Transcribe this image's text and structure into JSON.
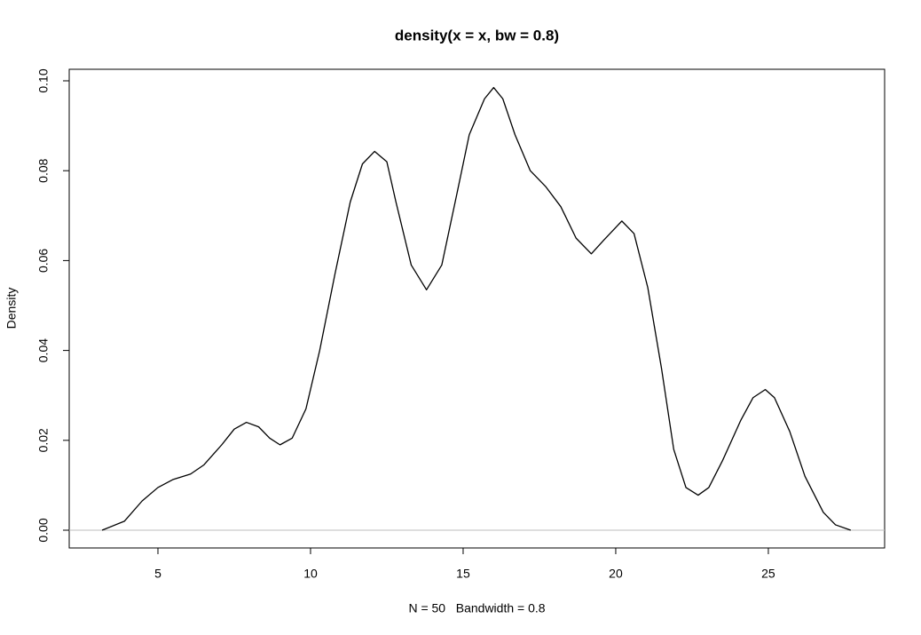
{
  "chart_data": {
    "type": "line",
    "title": "density(x = x, bw = 0.8)",
    "x_label": "N = 50   Bandwidth = 0.8",
    "y_label": "Density",
    "x": [
      3.17,
      3.9,
      4.48,
      5.0,
      5.5,
      6.07,
      6.5,
      7.09,
      7.5,
      7.9,
      8.3,
      8.66,
      9.0,
      9.4,
      9.85,
      10.3,
      10.8,
      11.3,
      11.7,
      12.1,
      12.5,
      12.8,
      13.3,
      13.8,
      14.3,
      14.8,
      15.2,
      15.7,
      16.0,
      16.3,
      16.7,
      17.2,
      17.7,
      18.2,
      18.7,
      19.2,
      19.6,
      20.2,
      20.6,
      21.05,
      21.5,
      21.9,
      22.3,
      22.7,
      23.05,
      23.5,
      24.1,
      24.5,
      24.9,
      25.2,
      25.7,
      26.2,
      26.8,
      27.2,
      27.7
    ],
    "values": [
      0.0,
      0.002,
      0.0065,
      0.0095,
      0.0113,
      0.0125,
      0.0145,
      0.019,
      0.0225,
      0.024,
      0.023,
      0.0205,
      0.019,
      0.0205,
      0.027,
      0.04,
      0.057,
      0.073,
      0.0815,
      0.0843,
      0.082,
      0.073,
      0.059,
      0.0535,
      0.059,
      0.075,
      0.088,
      0.096,
      0.0985,
      0.096,
      0.088,
      0.08,
      0.0765,
      0.072,
      0.065,
      0.0615,
      0.0645,
      0.0688,
      0.066,
      0.054,
      0.036,
      0.018,
      0.0095,
      0.0078,
      0.0095,
      0.0155,
      0.0245,
      0.0295,
      0.0313,
      0.0295,
      0.022,
      0.012,
      0.004,
      0.0012,
      0.0
    ],
    "color": "#000000",
    "xlim": [
      2.093,
      28.81
    ],
    "ylim": [
      -0.00395,
      0.10257
    ],
    "xticks": [
      5,
      10,
      15,
      20,
      25
    ],
    "yticks": [
      {
        "value": 0,
        "label": "0.00"
      },
      {
        "value": 0.02,
        "label": "0.02"
      },
      {
        "value": 0.04,
        "label": "0.04"
      },
      {
        "value": 0.06,
        "label": "0.06"
      },
      {
        "value": 0.08,
        "label": "0.08"
      },
      {
        "value": 0.1,
        "label": "0.10"
      }
    ],
    "reference_line": {
      "value": 0,
      "color": "#bebebe"
    }
  }
}
